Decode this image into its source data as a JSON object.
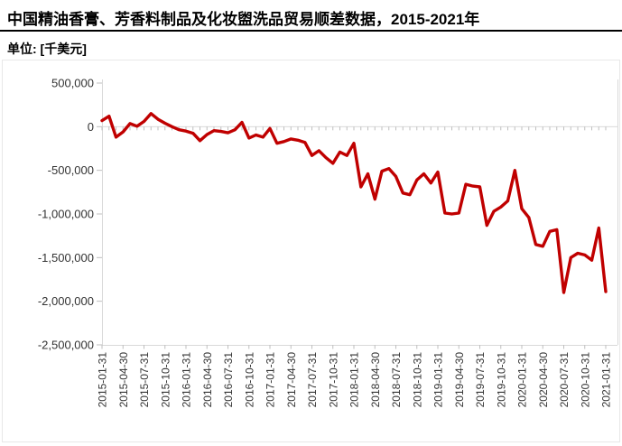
{
  "header": {
    "title": "中国精油香膏、芳香料制品及化妆盥洗品贸易顺差数据，2015-2021年",
    "unit_label": "单位: [千美元]"
  },
  "chart_data": {
    "type": "line",
    "title": "中国精油香膏、芳香料制品及化妆盥洗品贸易顺差数据，2015-2021年",
    "unit": "千美元",
    "xlabel": "",
    "ylabel": "",
    "ylim": [
      -2500000,
      500000
    ],
    "y_ticks": [
      500000,
      0,
      -500000,
      -1000000,
      -1500000,
      -2000000,
      -2500000
    ],
    "grid": "zero-line-only",
    "legend": "none",
    "line_color": "#C00000",
    "axis_color": "#D9D9D9",
    "tick_color": "#BFBFBF",
    "text_color": "#333333",
    "frame_color": "#E8E8E8",
    "x_tick_labels": [
      "2015-01-31",
      "2015-04-30",
      "2015-07-31",
      "2015-10-31",
      "2016-01-31",
      "2016-04-30",
      "2016-07-31",
      "2016-10-31",
      "2017-01-31",
      "2017-04-30",
      "2017-07-31",
      "2017-10-31",
      "2018-01-31",
      "2018-04-30",
      "2018-07-31",
      "2018-10-31",
      "2019-01-31",
      "2019-04-30",
      "2019-07-31",
      "2019-10-31",
      "2020-01-31",
      "2020-04-30",
      "2020-07-31",
      "2020-10-31",
      "2021-01-31"
    ],
    "x": [
      "2015-01-31",
      "2015-02-28",
      "2015-03-31",
      "2015-04-30",
      "2015-05-31",
      "2015-06-30",
      "2015-07-31",
      "2015-08-31",
      "2015-09-30",
      "2015-10-31",
      "2015-11-30",
      "2015-12-31",
      "2016-01-31",
      "2016-02-29",
      "2016-03-31",
      "2016-04-30",
      "2016-05-31",
      "2016-06-30",
      "2016-07-31",
      "2016-08-31",
      "2016-09-30",
      "2016-10-31",
      "2016-11-30",
      "2016-12-31",
      "2017-01-31",
      "2017-02-28",
      "2017-03-31",
      "2017-04-30",
      "2017-05-31",
      "2017-06-30",
      "2017-07-31",
      "2017-08-31",
      "2017-09-30",
      "2017-10-31",
      "2017-11-30",
      "2017-12-31",
      "2018-01-31",
      "2018-02-28",
      "2018-03-31",
      "2018-04-30",
      "2018-05-31",
      "2018-06-30",
      "2018-07-31",
      "2018-08-31",
      "2018-09-30",
      "2018-10-31",
      "2018-11-30",
      "2018-12-31",
      "2019-01-31",
      "2019-02-28",
      "2019-03-31",
      "2019-04-30",
      "2019-05-31",
      "2019-06-30",
      "2019-07-31",
      "2019-08-31",
      "2019-09-30",
      "2019-10-31",
      "2019-11-30",
      "2019-12-31",
      "2020-01-31",
      "2020-02-29",
      "2020-03-31",
      "2020-04-30",
      "2020-05-31",
      "2020-06-30",
      "2020-07-31",
      "2020-08-31",
      "2020-09-30",
      "2020-10-31",
      "2020-11-30",
      "2020-12-31",
      "2021-01-31"
    ],
    "series": [
      {
        "name": "贸易顺差",
        "values": [
          70000,
          120000,
          -120000,
          -60000,
          35000,
          5000,
          60000,
          150000,
          85000,
          40000,
          0,
          -35000,
          -50000,
          -75000,
          -160000,
          -90000,
          -45000,
          -55000,
          -70000,
          -35000,
          50000,
          -130000,
          -95000,
          -120000,
          -20000,
          -190000,
          -170000,
          -140000,
          -155000,
          -180000,
          -330000,
          -275000,
          -355000,
          -420000,
          -290000,
          -330000,
          -190000,
          -690000,
          -540000,
          -830000,
          -510000,
          -480000,
          -570000,
          -760000,
          -780000,
          -610000,
          -540000,
          -645000,
          -520000,
          -990000,
          -1000000,
          -990000,
          -660000,
          -680000,
          -690000,
          -1130000,
          -970000,
          -920000,
          -850000,
          -500000,
          -940000,
          -1040000,
          -1350000,
          -1370000,
          -1200000,
          -1180000,
          -1900000,
          -1500000,
          -1450000,
          -1470000,
          -1530000,
          -1160000,
          -1890000
        ]
      }
    ]
  }
}
